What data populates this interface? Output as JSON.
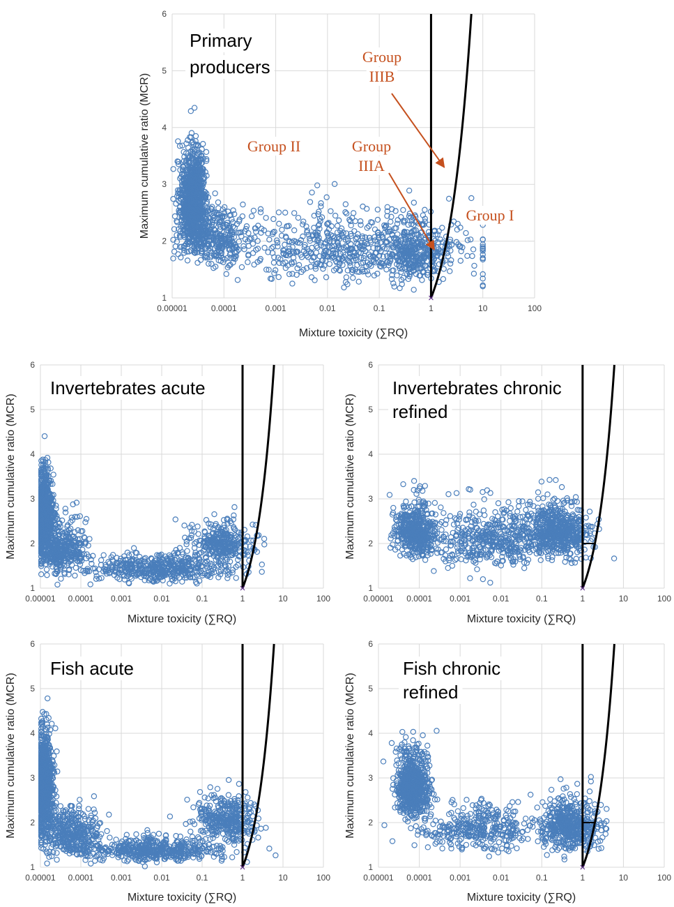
{
  "figure": {
    "colors": {
      "points": "#4a7ebb",
      "boundary": "#000000",
      "annotation": "#c5501e",
      "grid": "#d9d9d9"
    },
    "marker": "open-circle"
  },
  "chart_data": [
    {
      "type": "scatter",
      "title": [
        "Primary",
        "producers"
      ],
      "xlabel": "Mixture toxicity (∑RQ)",
      "ylabel": "Maximum cumulative ratio (MCR)",
      "x_scale": "log",
      "xlim": [
        1e-05,
        100
      ],
      "ylim": [
        1,
        6
      ],
      "x_ticks": [
        "0.00001",
        "0.0001",
        "0.001",
        "0.01",
        "0.1",
        "1",
        "10",
        "100"
      ],
      "y_ticks": [
        "1",
        "2",
        "3",
        "4",
        "5",
        "6"
      ],
      "grid": true,
      "annotations": [
        {
          "text": [
            "Group",
            "IIIB"
          ],
          "arrow_to": [
            1.8,
            3.3
          ]
        },
        {
          "text": [
            "Group",
            "IIIA"
          ],
          "arrow_to": [
            1.15,
            1.85
          ]
        },
        {
          "text": [
            "Group II"
          ]
        },
        {
          "text": [
            "Group I"
          ]
        }
      ],
      "boundary_lines": [
        {
          "type": "vertical",
          "x": 1,
          "y_from": 1,
          "y_to": 6
        },
        {
          "type": "curve",
          "equation": "MCR = sumRQ",
          "x_from": 1,
          "x_to": 6
        }
      ],
      "clusters": [
        {
          "x_log_center": -4.6,
          "x_log_sd": 0.12,
          "y_center": 2.5,
          "y_sd": 0.55,
          "count": 900
        },
        {
          "x_log_center": -4.2,
          "x_log_sd": 0.35,
          "y_center": 1.9,
          "y_sd": 0.35,
          "count": 350
        },
        {
          "x_log_center": -1.5,
          "x_log_sd": 1.2,
          "y_center": 1.7,
          "y_sd": 0.4,
          "count": 650
        },
        {
          "x_log_center": -0.3,
          "x_log_sd": 0.3,
          "y_center": 1.6,
          "y_sd": 0.4,
          "count": 250
        }
      ]
    },
    {
      "type": "scatter",
      "title": [
        "Invertebrates acute"
      ],
      "xlabel": "Mixture toxicity (∑RQ)",
      "ylabel": "Maximum cumulative ratio (MCR)",
      "x_scale": "log",
      "xlim": [
        1e-05,
        100
      ],
      "ylim": [
        1,
        6
      ],
      "x_ticks": [
        "0.00001",
        "0.0001",
        "0.001",
        "0.01",
        "0.1",
        "1",
        "10",
        "100"
      ],
      "y_ticks": [
        "1",
        "2",
        "3",
        "4",
        "5",
        "6"
      ],
      "grid": true,
      "boundary_lines": [
        {
          "type": "vertical",
          "x": 1,
          "y_from": 1,
          "y_to": 6
        },
        {
          "type": "curve",
          "equation": "MCR = sumRQ",
          "x_from": 1,
          "x_to": 6
        }
      ],
      "clusters": [
        {
          "x_log_center": -4.9,
          "x_log_sd": 0.1,
          "y_center": 2.4,
          "y_sd": 0.6,
          "count": 700
        },
        {
          "x_log_center": -4.5,
          "x_log_sd": 0.3,
          "y_center": 1.7,
          "y_sd": 0.4,
          "count": 400
        },
        {
          "x_log_center": -2.0,
          "x_log_sd": 0.9,
          "y_center": 1.35,
          "y_sd": 0.22,
          "count": 500
        },
        {
          "x_log_center": -0.5,
          "x_log_sd": 0.4,
          "y_center": 1.9,
          "y_sd": 0.3,
          "count": 300
        }
      ]
    },
    {
      "type": "scatter",
      "title": [
        "Invertebrates chronic",
        "refined"
      ],
      "xlabel": "Mixture toxicity (∑RQ)",
      "ylabel": "Maximum cumulative ratio (MCR)",
      "x_scale": "log",
      "xlim": [
        1e-05,
        100
      ],
      "ylim": [
        1,
        6
      ],
      "x_ticks": [
        "0.00001",
        "0.0001",
        "0.001",
        "0.01",
        "0.1",
        "1",
        "10",
        "100"
      ],
      "y_ticks": [
        "1",
        "2",
        "3",
        "4",
        "5",
        "6"
      ],
      "grid": true,
      "boundary_lines": [
        {
          "type": "vertical",
          "x": 1,
          "y_from": 1,
          "y_to": 6
        },
        {
          "type": "curve",
          "equation": "MCR = sumRQ",
          "x_from": 1,
          "x_to": 6
        },
        {
          "type": "horizontal",
          "y": 2,
          "x_from": 1,
          "x_to": 2
        }
      ],
      "clusters": [
        {
          "x_log_center": -4.1,
          "x_log_sd": 0.25,
          "y_center": 2.1,
          "y_sd": 0.4,
          "count": 500
        },
        {
          "x_log_center": -2.2,
          "x_log_sd": 0.8,
          "y_center": 1.9,
          "y_sd": 0.45,
          "count": 500
        },
        {
          "x_log_center": -0.6,
          "x_log_sd": 0.35,
          "y_center": 2.1,
          "y_sd": 0.4,
          "count": 550
        }
      ]
    },
    {
      "type": "scatter",
      "title": [
        "Fish acute"
      ],
      "xlabel": "Mixture toxicity (∑RQ)",
      "ylabel": "Maximum cumulative ratio (MCR)",
      "x_scale": "log",
      "xlim": [
        1e-05,
        100
      ],
      "ylim": [
        1,
        6
      ],
      "x_ticks": [
        "0.00001",
        "0.0001",
        "0.001",
        "0.01",
        "0.1",
        "1",
        "10",
        "100"
      ],
      "y_ticks": [
        "1",
        "2",
        "3",
        "4",
        "5",
        "6"
      ],
      "grid": true,
      "boundary_lines": [
        {
          "type": "vertical",
          "x": 1,
          "y_from": 1,
          "y_to": 6
        },
        {
          "type": "curve",
          "equation": "MCR = sumRQ",
          "x_from": 1,
          "x_to": 6
        }
      ],
      "clusters": [
        {
          "x_log_center": -4.9,
          "x_log_sd": 0.12,
          "y_center": 2.6,
          "y_sd": 0.7,
          "count": 800
        },
        {
          "x_log_center": -4.3,
          "x_log_sd": 0.4,
          "y_center": 1.6,
          "y_sd": 0.35,
          "count": 400
        },
        {
          "x_log_center": -2.2,
          "x_log_sd": 0.9,
          "y_center": 1.3,
          "y_sd": 0.18,
          "count": 500
        },
        {
          "x_log_center": -0.4,
          "x_log_sd": 0.4,
          "y_center": 1.9,
          "y_sd": 0.35,
          "count": 350
        }
      ]
    },
    {
      "type": "scatter",
      "title": [
        "Fish chronic",
        "refined"
      ],
      "xlabel": "Mixture toxicity (∑RQ)",
      "ylabel": "Maximum cumulative ratio (MCR)",
      "x_scale": "log",
      "xlim": [
        1e-05,
        100
      ],
      "ylim": [
        1,
        6
      ],
      "x_ticks": [
        "0.00001",
        "0.0001",
        "0.001",
        "0.01",
        "0.1",
        "1",
        "10",
        "100"
      ],
      "y_ticks": [
        "1",
        "2",
        "3",
        "4",
        "5",
        "6"
      ],
      "grid": true,
      "boundary_lines": [
        {
          "type": "vertical",
          "x": 1,
          "y_from": 1,
          "y_to": 6
        },
        {
          "type": "curve",
          "equation": "MCR = sumRQ",
          "x_from": 1,
          "x_to": 6
        },
        {
          "type": "horizontal",
          "y": 2,
          "x_from": 1,
          "x_to": 2
        }
      ],
      "clusters": [
        {
          "x_log_center": -4.15,
          "x_log_sd": 0.2,
          "y_center": 2.6,
          "y_sd": 0.5,
          "count": 650
        },
        {
          "x_log_center": -2.5,
          "x_log_sd": 0.7,
          "y_center": 1.7,
          "y_sd": 0.35,
          "count": 350
        },
        {
          "x_log_center": -0.3,
          "x_log_sd": 0.35,
          "y_center": 1.75,
          "y_sd": 0.4,
          "count": 500
        }
      ]
    }
  ]
}
